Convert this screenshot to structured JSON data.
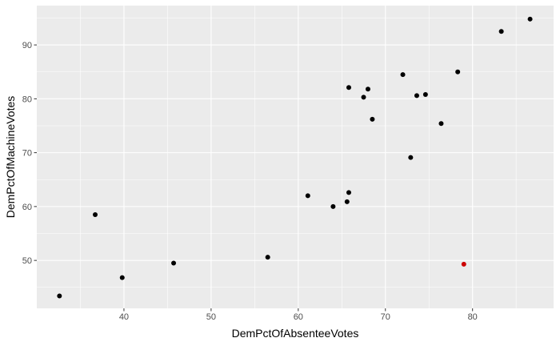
{
  "chart_data": {
    "type": "scatter",
    "xlabel": "DemPctOfAbsenteeVotes",
    "ylabel": "DemPctOfMachineVotes",
    "xlim": [
      30.0,
      89.3
    ],
    "ylim": [
      41.1,
      97.3
    ],
    "x_ticks": [
      40,
      50,
      60,
      70,
      80
    ],
    "y_ticks": [
      50,
      60,
      70,
      80,
      90
    ],
    "grid": true,
    "colors": {
      "panel": "#ebebeb",
      "grid": "#ffffff",
      "point": "#000000",
      "highlight": "#cc0000"
    },
    "points": [
      {
        "x": 32.6,
        "y": 43.4
      },
      {
        "x": 36.7,
        "y": 58.5
      },
      {
        "x": 39.8,
        "y": 46.8
      },
      {
        "x": 45.7,
        "y": 49.5
      },
      {
        "x": 56.5,
        "y": 50.6
      },
      {
        "x": 61.1,
        "y": 62.0
      },
      {
        "x": 64.0,
        "y": 60.0
      },
      {
        "x": 65.6,
        "y": 60.9
      },
      {
        "x": 65.8,
        "y": 62.6
      },
      {
        "x": 65.8,
        "y": 82.1
      },
      {
        "x": 67.5,
        "y": 80.3
      },
      {
        "x": 68.0,
        "y": 81.8
      },
      {
        "x": 68.5,
        "y": 76.2
      },
      {
        "x": 72.0,
        "y": 84.5
      },
      {
        "x": 72.9,
        "y": 69.1
      },
      {
        "x": 73.6,
        "y": 80.6
      },
      {
        "x": 74.6,
        "y": 80.8
      },
      {
        "x": 76.4,
        "y": 75.4
      },
      {
        "x": 78.3,
        "y": 85.0
      },
      {
        "x": 79.0,
        "y": 49.3,
        "highlight": true
      },
      {
        "x": 83.3,
        "y": 92.5
      },
      {
        "x": 86.6,
        "y": 94.8
      }
    ]
  }
}
